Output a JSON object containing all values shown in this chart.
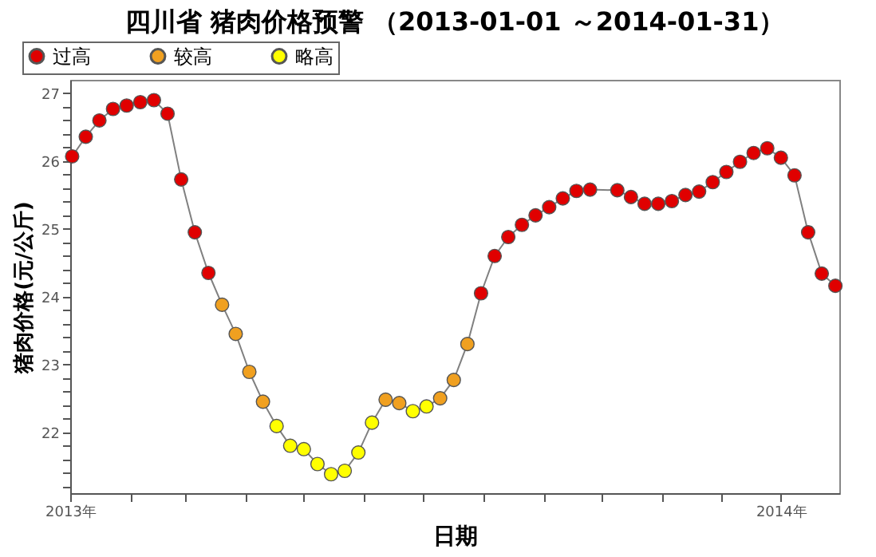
{
  "chart_data": {
    "type": "line",
    "title": "四川省 猪肉价格预警 （2013-01-01 ～2014-01-31）",
    "xlabel": "日期",
    "ylabel": "猪肉价格(元/公斤)",
    "xlim": [
      "2013-01-01",
      "2014-01-31"
    ],
    "xticks": [
      {
        "value": "2013-01-01",
        "label": "2013年"
      },
      {
        "value": "2013-02-01",
        "label": null
      },
      {
        "value": "2013-03-01",
        "label": null
      },
      {
        "value": "2013-04-01",
        "label": null
      },
      {
        "value": "2013-05-01",
        "label": null
      },
      {
        "value": "2013-06-01",
        "label": null
      },
      {
        "value": "2013-07-01",
        "label": null
      },
      {
        "value": "2013-08-01",
        "label": null
      },
      {
        "value": "2013-09-01",
        "label": null
      },
      {
        "value": "2013-10-01",
        "label": null
      },
      {
        "value": "2013-11-01",
        "label": null
      },
      {
        "value": "2013-12-01",
        "label": null
      },
      {
        "value": "2014-01-01",
        "label": "2014年"
      }
    ],
    "ylim": [
      21.1,
      27.2
    ],
    "yticks": [
      {
        "value": 21.2,
        "label": null
      },
      {
        "value": 21.4,
        "label": null
      },
      {
        "value": 21.6,
        "label": null
      },
      {
        "value": 21.8,
        "label": null
      },
      22,
      {
        "value": 22.2,
        "label": null
      },
      {
        "value": 22.4,
        "label": null
      },
      {
        "value": 22.6,
        "label": null
      },
      {
        "value": 22.8,
        "label": null
      },
      23,
      {
        "value": 23.2,
        "label": null
      },
      {
        "value": 23.4,
        "label": null
      },
      {
        "value": 23.6,
        "label": null
      },
      {
        "value": 23.8,
        "label": null
      },
      24,
      {
        "value": 24.2,
        "label": null
      },
      {
        "value": 24.4,
        "label": null
      },
      {
        "value": 24.6,
        "label": null
      },
      {
        "value": 24.8,
        "label": null
      },
      25,
      {
        "value": 25.2,
        "label": null
      },
      {
        "value": 25.4,
        "label": null
      },
      {
        "value": 25.6,
        "label": null
      },
      {
        "value": 25.8,
        "label": null
      },
      26,
      {
        "value": 26.2,
        "label": null
      },
      {
        "value": 26.4,
        "label": null
      },
      {
        "value": 26.6,
        "label": null
      },
      {
        "value": 26.8,
        "label": null
      },
      27
    ],
    "grid": false,
    "legend": "top left",
    "series": [
      {
        "type": "line",
        "color": "#808080",
        "marker": "none",
        "line_style": "solid",
        "x": [
          "2013-01-02",
          "2013-01-09",
          "2013-01-16",
          "2013-01-23",
          "2013-01-30",
          "2013-02-06",
          "2013-02-13",
          "2013-02-20",
          "2013-02-27",
          "2013-03-06",
          "2013-03-13",
          "2013-03-20",
          "2013-03-27",
          "2013-04-03",
          "2013-04-10",
          "2013-04-17",
          "2013-04-24",
          "2013-05-01",
          "2013-05-08",
          "2013-05-15",
          "2013-05-22",
          "2013-05-29",
          "2013-06-05",
          "2013-06-12",
          "2013-06-19",
          "2013-06-26",
          "2013-07-03",
          "2013-07-10",
          "2013-07-17",
          "2013-07-24",
          "2013-07-31",
          "2013-08-07",
          "2013-08-14",
          "2013-08-21",
          "2013-08-28",
          "2013-09-04",
          "2013-09-11",
          "2013-09-18",
          "2013-09-25",
          "2013-10-09",
          "2013-10-16",
          "2013-10-23",
          "2013-10-30",
          "2013-11-06",
          "2013-11-13",
          "2013-11-20",
          "2013-11-27",
          "2013-12-04",
          "2013-12-11",
          "2013-12-18",
          "2013-12-25",
          "2014-01-01",
          "2014-01-08",
          "2014-01-15",
          "2014-01-22",
          "2014-01-29"
        ],
        "values": [
          26.07,
          26.36,
          26.6,
          26.77,
          26.82,
          26.87,
          26.9,
          26.7,
          25.73,
          24.95,
          24.35,
          23.88,
          23.45,
          22.89,
          22.45,
          22.09,
          21.8,
          21.75,
          21.53,
          21.38,
          21.43,
          21.7,
          22.14,
          22.48,
          22.43,
          22.31,
          22.38,
          22.5,
          22.77,
          23.3,
          24.05,
          24.6,
          24.88,
          25.06,
          25.2,
          25.32,
          25.45,
          25.56,
          25.58,
          25.57,
          25.47,
          25.37,
          25.37,
          25.41,
          25.5,
          25.55,
          25.69,
          25.84,
          25.99,
          26.12,
          26.19,
          26.05,
          25.79,
          24.95,
          24.34,
          24.16
        ]
      },
      {
        "type": "scatter",
        "name": "过高",
        "color": "#e00000",
        "marker": "circle",
        "x": [
          "2013-01-02",
          "2013-01-09",
          "2013-01-16",
          "2013-01-23",
          "2013-01-30",
          "2013-02-06",
          "2013-02-13",
          "2013-02-20",
          "2013-02-27",
          "2013-03-06",
          "2013-03-13",
          "2013-07-31",
          "2013-08-07",
          "2013-08-14",
          "2013-08-21",
          "2013-08-28",
          "2013-09-04",
          "2013-09-11",
          "2013-09-18",
          "2013-09-25",
          "2013-10-09",
          "2013-10-16",
          "2013-10-23",
          "2013-10-30",
          "2013-11-06",
          "2013-11-13",
          "2013-11-20",
          "2013-11-27",
          "2013-12-04",
          "2013-12-11",
          "2013-12-18",
          "2013-12-25",
          "2014-01-01",
          "2014-01-08",
          "2014-01-15",
          "2014-01-22",
          "2014-01-29"
        ],
        "values": [
          26.07,
          26.36,
          26.6,
          26.77,
          26.82,
          26.87,
          26.9,
          26.7,
          25.73,
          24.95,
          24.35,
          24.05,
          24.6,
          24.88,
          25.06,
          25.2,
          25.32,
          25.45,
          25.56,
          25.58,
          25.57,
          25.47,
          25.37,
          25.37,
          25.41,
          25.5,
          25.55,
          25.69,
          25.84,
          25.99,
          26.12,
          26.19,
          26.05,
          25.79,
          24.95,
          24.34,
          24.16
        ]
      },
      {
        "type": "scatter",
        "name": "较高",
        "color": "#f0a020",
        "marker": "circle",
        "x": [
          "2013-03-20",
          "2013-03-27",
          "2013-04-03",
          "2013-04-10",
          "2013-06-12",
          "2013-06-19",
          "2013-07-10",
          "2013-07-17",
          "2013-07-24"
        ],
        "values": [
          23.88,
          23.45,
          22.89,
          22.45,
          22.48,
          22.43,
          22.5,
          22.77,
          23.3
        ]
      },
      {
        "type": "scatter",
        "name": "略高",
        "color": "#ffff00",
        "marker": "circle",
        "x": [
          "2013-04-17",
          "2013-04-24",
          "2013-05-01",
          "2013-05-08",
          "2013-05-15",
          "2013-05-22",
          "2013-05-29",
          "2013-06-05",
          "2013-06-26",
          "2013-07-03"
        ],
        "values": [
          22.09,
          21.8,
          21.75,
          21.53,
          21.38,
          21.43,
          21.7,
          22.14,
          22.31,
          22.38
        ]
      }
    ]
  }
}
